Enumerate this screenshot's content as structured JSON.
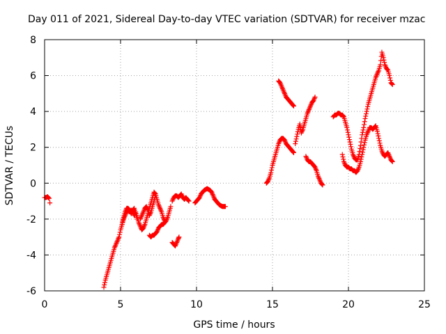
{
  "chart_data": {
    "type": "scatter",
    "title": "Day 011 of 2021, Sidereal Day-to-day VTEC variation (SDTVAR) for receiver mzac",
    "xlabel": "GPS time / hours",
    "ylabel": "SDTVAR / TECUs",
    "xlim": [
      0,
      25
    ],
    "ylim": [
      -6,
      8
    ],
    "xticks": [
      "0",
      "5",
      "10",
      "15",
      "20",
      "25"
    ],
    "yticks": [
      "-6",
      "-4",
      "-2",
      "0",
      "2",
      "4",
      "6",
      "8"
    ],
    "grid": true,
    "marker": "+",
    "color": "#ff0000",
    "segments": [
      [
        [
          0.0,
          -0.8
        ],
        [
          0.1,
          -0.8
        ],
        [
          0.2,
          -0.75
        ],
        [
          0.3,
          -0.85
        ]
      ],
      [
        [
          0.35,
          -1.1
        ]
      ],
      [
        [
          3.9,
          -5.8
        ],
        [
          4.0,
          -5.4
        ],
        [
          4.1,
          -5.1
        ],
        [
          4.2,
          -4.8
        ],
        [
          4.3,
          -4.5
        ],
        [
          4.4,
          -4.2
        ],
        [
          4.5,
          -3.9
        ],
        [
          4.6,
          -3.6
        ],
        [
          4.7,
          -3.4
        ],
        [
          4.8,
          -3.2
        ],
        [
          4.9,
          -3.0
        ],
        [
          5.0,
          -2.6
        ],
        [
          5.1,
          -2.3
        ],
        [
          5.2,
          -2.0
        ],
        [
          5.3,
          -1.8
        ],
        [
          5.4,
          -1.6
        ],
        [
          5.5,
          -1.5
        ],
        [
          5.6,
          -1.6
        ],
        [
          5.7,
          -1.5
        ],
        [
          5.8,
          -1.6
        ],
        [
          5.9,
          -1.8
        ],
        [
          6.0,
          -1.6
        ],
        [
          6.1,
          -1.9
        ],
        [
          6.2,
          -2.2
        ],
        [
          6.3,
          -2.4
        ],
        [
          6.4,
          -2.6
        ],
        [
          6.5,
          -2.5
        ],
        [
          6.6,
          -2.3
        ],
        [
          6.7,
          -2.0
        ],
        [
          6.8,
          -1.7
        ],
        [
          6.9,
          -1.4
        ],
        [
          7.0,
          -1.1
        ],
        [
          7.1,
          -0.8
        ],
        [
          7.2,
          -0.5
        ],
        [
          7.3,
          -0.6
        ],
        [
          7.4,
          -0.9
        ],
        [
          7.5,
          -1.2
        ],
        [
          7.6,
          -1.4
        ],
        [
          7.7,
          -1.6
        ],
        [
          7.8,
          -1.9
        ],
        [
          7.9,
          -2.1
        ]
      ],
      [
        [
          5.1,
          -2.3
        ],
        [
          5.2,
          -1.9
        ],
        [
          5.3,
          -1.6
        ],
        [
          5.4,
          -1.4
        ],
        [
          5.5,
          -1.4
        ],
        [
          5.6,
          -1.5
        ],
        [
          5.7,
          -1.7
        ],
        [
          5.8,
          -1.5
        ],
        [
          5.9,
          -1.4
        ],
        [
          6.0,
          -1.7
        ],
        [
          6.1,
          -2.0
        ]
      ],
      [
        [
          6.3,
          -2.0
        ],
        [
          6.4,
          -1.8
        ],
        [
          6.5,
          -1.6
        ],
        [
          6.6,
          -1.4
        ],
        [
          6.7,
          -1.3
        ],
        [
          6.8,
          -1.5
        ],
        [
          6.9,
          -1.8
        ],
        [
          7.0,
          -1.6
        ],
        [
          7.1,
          -1.3
        ],
        [
          7.2,
          -1.0
        ],
        [
          7.3,
          -0.7
        ]
      ],
      [
        [
          6.9,
          -2.9
        ],
        [
          7.0,
          -3.0
        ],
        [
          7.1,
          -2.9
        ],
        [
          7.2,
          -2.9
        ],
        [
          7.3,
          -2.8
        ],
        [
          7.4,
          -2.7
        ],
        [
          7.5,
          -2.5
        ],
        [
          7.6,
          -2.4
        ],
        [
          7.7,
          -2.3
        ],
        [
          7.8,
          -2.3
        ],
        [
          7.9,
          -2.2
        ],
        [
          8.0,
          -2.1
        ],
        [
          8.1,
          -1.9
        ],
        [
          8.2,
          -1.6
        ],
        [
          8.3,
          -1.3
        ]
      ],
      [
        [
          8.4,
          -3.3
        ],
        [
          8.5,
          -3.4
        ],
        [
          8.6,
          -3.5
        ],
        [
          8.7,
          -3.3
        ],
        [
          8.8,
          -3.1
        ],
        [
          8.85,
          -3.0
        ]
      ],
      [
        [
          8.4,
          -1.0
        ],
        [
          8.5,
          -0.8
        ],
        [
          8.6,
          -0.7
        ],
        [
          8.7,
          -0.7
        ],
        [
          8.8,
          -0.8
        ],
        [
          8.9,
          -0.7
        ],
        [
          9.0,
          -0.6
        ],
        [
          9.1,
          -0.8
        ],
        [
          9.2,
          -0.9
        ],
        [
          9.3,
          -0.8
        ],
        [
          9.4,
          -0.9
        ],
        [
          9.5,
          -1.0
        ]
      ],
      [
        [
          9.9,
          -1.1
        ],
        [
          10.0,
          -1.0
        ],
        [
          10.1,
          -0.9
        ],
        [
          10.2,
          -0.8
        ],
        [
          10.3,
          -0.6
        ],
        [
          10.4,
          -0.5
        ],
        [
          10.5,
          -0.4
        ],
        [
          10.6,
          -0.35
        ],
        [
          10.7,
          -0.3
        ],
        [
          10.8,
          -0.35
        ],
        [
          10.9,
          -0.4
        ],
        [
          11.0,
          -0.5
        ],
        [
          11.1,
          -0.7
        ],
        [
          11.2,
          -0.9
        ],
        [
          11.3,
          -1.0
        ],
        [
          11.4,
          -1.1
        ],
        [
          11.5,
          -1.2
        ],
        [
          11.6,
          -1.25
        ],
        [
          11.7,
          -1.3
        ],
        [
          11.8,
          -1.3
        ],
        [
          11.9,
          -1.3
        ]
      ],
      [
        [
          14.6,
          0.0
        ],
        [
          14.7,
          0.1
        ],
        [
          14.8,
          0.3
        ],
        [
          14.9,
          0.6
        ],
        [
          15.0,
          1.0
        ],
        [
          15.1,
          1.3
        ],
        [
          15.2,
          1.6
        ],
        [
          15.3,
          1.9
        ],
        [
          15.4,
          2.2
        ],
        [
          15.5,
          2.4
        ],
        [
          15.6,
          2.5
        ],
        [
          15.7,
          2.5
        ],
        [
          15.8,
          2.4
        ],
        [
          15.9,
          2.2
        ],
        [
          16.0,
          2.1
        ],
        [
          16.1,
          2.0
        ],
        [
          16.2,
          1.9
        ],
        [
          16.3,
          1.8
        ],
        [
          16.4,
          1.7
        ]
      ],
      [
        [
          15.4,
          5.7
        ],
        [
          15.5,
          5.6
        ],
        [
          15.6,
          5.4
        ],
        [
          15.7,
          5.2
        ],
        [
          15.8,
          5.0
        ],
        [
          15.9,
          4.8
        ],
        [
          16.0,
          4.7
        ],
        [
          16.1,
          4.6
        ],
        [
          16.2,
          4.5
        ],
        [
          16.3,
          4.4
        ],
        [
          16.4,
          4.3
        ]
      ],
      [
        [
          16.5,
          2.2
        ],
        [
          16.6,
          2.6
        ],
        [
          16.7,
          3.0
        ],
        [
          16.8,
          3.3
        ],
        [
          16.9,
          2.8
        ],
        [
          17.0,
          3.0
        ],
        [
          17.1,
          3.3
        ],
        [
          17.2,
          3.6
        ],
        [
          17.3,
          3.9
        ],
        [
          17.4,
          4.1
        ],
        [
          17.5,
          4.3
        ],
        [
          17.6,
          4.5
        ],
        [
          17.7,
          4.6
        ],
        [
          17.8,
          4.8
        ]
      ],
      [
        [
          17.2,
          1.5
        ],
        [
          17.3,
          1.3
        ],
        [
          17.4,
          1.2
        ],
        [
          17.5,
          1.2
        ],
        [
          17.6,
          1.1
        ],
        [
          17.7,
          1.0
        ],
        [
          17.8,
          0.9
        ],
        [
          17.9,
          0.7
        ],
        [
          18.0,
          0.4
        ],
        [
          18.1,
          0.2
        ],
        [
          18.2,
          0.0
        ],
        [
          18.3,
          -0.1
        ]
      ],
      [
        [
          19.0,
          3.7
        ],
        [
          19.1,
          3.8
        ],
        [
          19.2,
          3.8
        ],
        [
          19.3,
          3.9
        ],
        [
          19.4,
          3.9
        ],
        [
          19.5,
          3.8
        ],
        [
          19.6,
          3.8
        ],
        [
          19.7,
          3.7
        ],
        [
          19.8,
          3.4
        ],
        [
          19.9,
          3.1
        ],
        [
          20.0,
          2.7
        ],
        [
          20.1,
          2.3
        ],
        [
          20.2,
          1.9
        ],
        [
          20.3,
          1.6
        ],
        [
          20.4,
          1.4
        ],
        [
          20.5,
          1.3
        ],
        [
          20.6,
          1.3
        ],
        [
          20.7,
          1.6
        ],
        [
          20.8,
          2.1
        ],
        [
          20.9,
          2.7
        ],
        [
          21.0,
          3.1
        ],
        [
          21.1,
          3.6
        ],
        [
          21.2,
          4.0
        ],
        [
          21.3,
          4.4
        ],
        [
          21.4,
          4.7
        ],
        [
          21.5,
          5.0
        ],
        [
          21.6,
          5.3
        ],
        [
          21.7,
          5.6
        ],
        [
          21.8,
          5.9
        ],
        [
          21.9,
          6.1
        ],
        [
          22.0,
          6.3
        ],
        [
          22.1,
          6.6
        ],
        [
          22.2,
          7.3
        ],
        [
          22.3,
          7.0
        ],
        [
          22.4,
          6.6
        ],
        [
          22.5,
          6.4
        ],
        [
          22.6,
          6.3
        ],
        [
          22.7,
          6.0
        ],
        [
          22.8,
          5.6
        ],
        [
          22.9,
          5.5
        ]
      ],
      [
        [
          19.6,
          1.6
        ],
        [
          19.7,
          1.2
        ],
        [
          19.8,
          1.0
        ],
        [
          19.9,
          0.9
        ],
        [
          20.0,
          0.9
        ],
        [
          20.1,
          0.8
        ],
        [
          20.2,
          0.8
        ],
        [
          20.3,
          0.7
        ],
        [
          20.4,
          0.7
        ],
        [
          20.5,
          0.6
        ],
        [
          20.6,
          0.7
        ],
        [
          20.7,
          0.9
        ],
        [
          20.8,
          1.2
        ],
        [
          20.9,
          1.6
        ],
        [
          21.0,
          2.0
        ],
        [
          21.1,
          2.4
        ],
        [
          21.2,
          2.7
        ],
        [
          21.3,
          2.9
        ],
        [
          21.4,
          3.1
        ],
        [
          21.5,
          3.1
        ],
        [
          21.6,
          3.0
        ],
        [
          21.7,
          3.1
        ],
        [
          21.8,
          3.2
        ],
        [
          21.9,
          2.9
        ],
        [
          22.0,
          2.5
        ],
        [
          22.1,
          2.1
        ],
        [
          22.2,
          1.8
        ],
        [
          22.3,
          1.6
        ],
        [
          22.4,
          1.5
        ],
        [
          22.5,
          1.6
        ],
        [
          22.6,
          1.7
        ],
        [
          22.7,
          1.5
        ],
        [
          22.8,
          1.3
        ],
        [
          22.9,
          1.2
        ]
      ]
    ]
  }
}
